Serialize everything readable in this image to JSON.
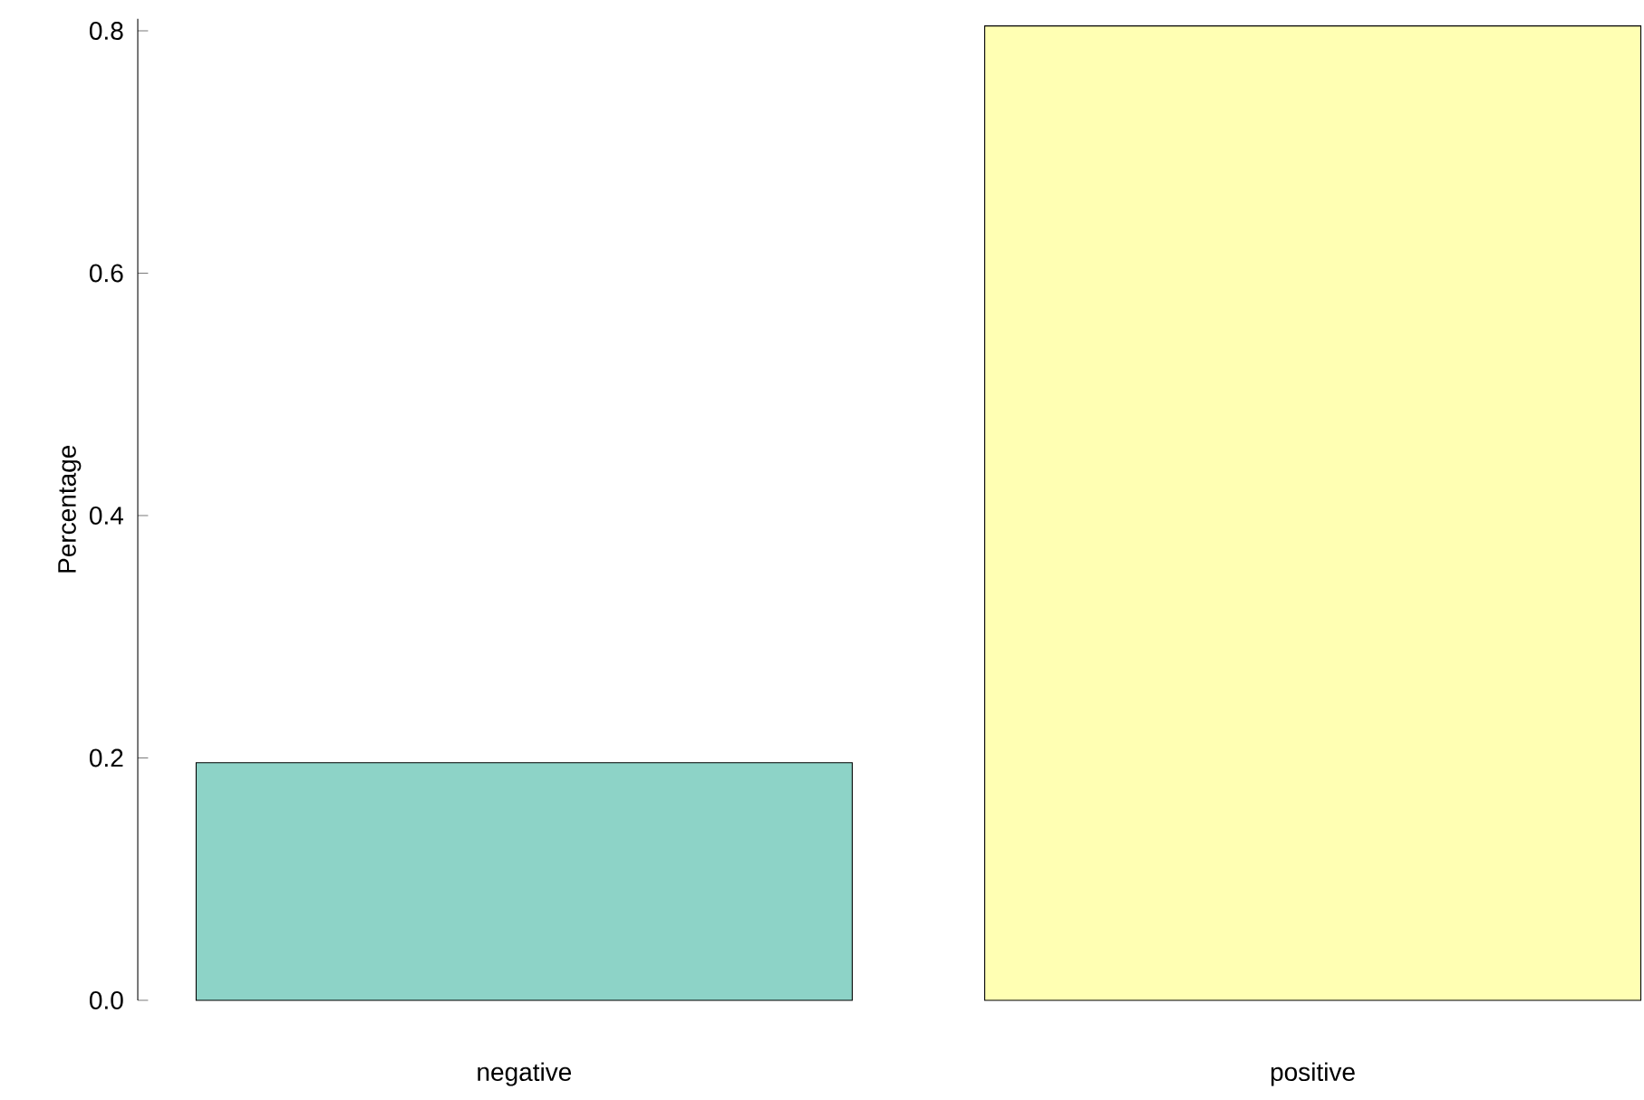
{
  "chart_data": {
    "type": "bar",
    "ylabel": "Percentage",
    "categories": [
      "negative",
      "positive"
    ],
    "values": [
      0.196,
      0.804
    ],
    "colors": [
      "#8dd3c7",
      "#ffffb3"
    ],
    "ylim": [
      0,
      0.81
    ],
    "yticks": [
      {
        "value": 0,
        "label": "0.0"
      },
      {
        "value": 0.2,
        "label": "0.2"
      },
      {
        "value": 0.4,
        "label": "0.4"
      },
      {
        "value": 0.6,
        "label": "0.6"
      },
      {
        "value": 0.8,
        "label": "0.8"
      }
    ]
  }
}
